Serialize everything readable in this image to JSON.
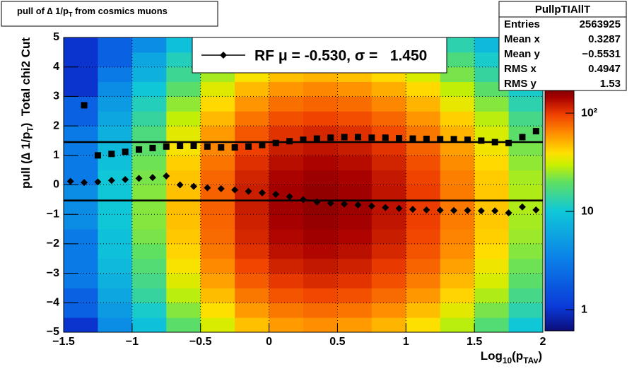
{
  "chart_data": {
    "type": "heatmap",
    "title_parts": [
      "pull of ∆ 1/p",
      "T",
      " from cosmics muons"
    ],
    "xlabel_parts": [
      "Log",
      "10",
      "(p",
      "TAv",
      ")"
    ],
    "ylabel_parts": [
      "pull (∆ 1/p",
      "T",
      ")  Total chi2 Cut"
    ],
    "xlim": [
      -1.5,
      2
    ],
    "ylim": [
      -5,
      5
    ],
    "xticks": [
      {
        "value": -1.5,
        "label": "−1.5"
      },
      {
        "value": -1,
        "label": "−1"
      },
      {
        "value": -0.5,
        "label": "−0.5"
      },
      0,
      0.5,
      1,
      1.5,
      2
    ],
    "yticks": [
      {
        "value": -5,
        "label": "−5"
      },
      {
        "value": -4,
        "label": "−4"
      },
      {
        "value": -3,
        "label": "−3"
      },
      {
        "value": -2,
        "label": "−2"
      },
      {
        "value": -1,
        "label": "−1"
      },
      0,
      1,
      2,
      3,
      4,
      5
    ],
    "grid": true,
    "zlim": [
      0.61,
      170
    ],
    "zlog": true,
    "zticks": [
      1,
      10,
      {
        "value": 100,
        "label": "10²"
      }
    ],
    "xbins": [
      -1.5,
      -1.25,
      -1,
      -0.75,
      -0.5,
      -0.25,
      0,
      0.25,
      0.5,
      0.75,
      1,
      1.25,
      1.5,
      1.75,
      2
    ],
    "ybins": [
      -5,
      -4.5,
      -4,
      -3.5,
      -3,
      -2.5,
      -2,
      -1.5,
      -1,
      -0.5,
      0,
      0.5,
      1,
      1.5,
      2,
      2.5,
      3,
      3.5,
      4,
      4.5,
      5
    ],
    "z": [
      [
        1,
        4,
        9,
        19,
        32,
        47,
        58,
        62,
        58,
        50,
        39,
        28,
        18,
        10
      ],
      [
        2,
        5,
        11,
        23,
        39,
        58,
        71,
        76,
        72,
        62,
        48,
        34,
        22,
        13
      ],
      [
        2,
        6,
        14,
        28,
        48,
        71,
        87,
        93,
        88,
        76,
        59,
        42,
        27,
        16
      ],
      [
        3,
        7,
        16,
        33,
        56,
        83,
        102,
        110,
        104,
        89,
        69,
        49,
        32,
        19
      ],
      [
        3,
        8,
        18,
        38,
        64,
        94,
        116,
        124,
        117,
        101,
        79,
        56,
        36,
        21
      ],
      [
        3,
        9,
        20,
        42,
        71,
        105,
        129,
        138,
        130,
        112,
        87,
        62,
        40,
        23
      ],
      [
        3,
        9,
        22,
        45,
        76,
        112,
        138,
        148,
        140,
        120,
        93,
        66,
        43,
        25
      ],
      [
        4,
        10,
        23,
        47,
        79,
        117,
        145,
        155,
        146,
        126,
        98,
        69,
        45,
        26
      ],
      [
        4,
        10,
        23,
        48,
        81,
        120,
        148,
        158,
        150,
        129,
        100,
        71,
        46,
        27
      ],
      [
        4,
        10,
        23,
        47,
        80,
        119,
        146,
        157,
        148,
        127,
        99,
        70,
        45,
        27
      ],
      [
        3,
        10,
        22,
        46,
        78,
        115,
        141,
        151,
        143,
        123,
        95,
        68,
        44,
        26
      ],
      [
        3,
        9,
        21,
        43,
        72,
        107,
        132,
        141,
        133,
        115,
        89,
        63,
        41,
        24
      ],
      [
        3,
        8,
        19,
        38,
        65,
        97,
        119,
        127,
        120,
        104,
        80,
        57,
        37,
        22
      ],
      [
        3,
        7,
        17,
        34,
        58,
        85,
        105,
        112,
        106,
        91,
        71,
        50,
        32,
        19
      ],
      [
        2,
        6,
        14,
        29,
        49,
        72,
        89,
        95,
        90,
        78,
        60,
        43,
        28,
        16
      ],
      [
        2,
        5,
        12,
        24,
        41,
        60,
        74,
        79,
        75,
        65,
        50,
        35,
        23,
        13
      ],
      [
        1,
        4,
        10,
        19,
        33,
        49,
        60,
        65,
        61,
        52,
        41,
        29,
        19,
        11
      ],
      [
        1,
        3,
        7,
        15,
        26,
        38,
        47,
        50,
        47,
        41,
        32,
        22,
        14,
        9
      ],
      [
        1,
        2,
        6,
        12,
        20,
        30,
        36,
        39,
        37,
        32,
        25,
        17,
        11,
        7
      ],
      [
        1,
        2,
        4,
        9,
        15,
        22,
        27,
        29,
        27,
        23,
        18,
        13,
        8,
        5
      ]
    ],
    "series": [
      {
        "marker": "square",
        "color": "#000000",
        "x": [
          -1.35,
          -1.25,
          -1.15,
          -1.05,
          -0.95,
          -0.85,
          -0.75,
          -0.65,
          -0.55,
          -0.45,
          -0.35,
          -0.25,
          -0.15,
          -0.05,
          0.05,
          0.15,
          0.25,
          0.35,
          0.45,
          0.55,
          0.65,
          0.75,
          0.85,
          0.95,
          1.05,
          1.15,
          1.25,
          1.35,
          1.45,
          1.55,
          1.65,
          1.75,
          1.85,
          1.95
        ],
        "values": [
          2.7,
          1.0,
          1.05,
          1.12,
          1.2,
          1.25,
          1.3,
          1.32,
          1.32,
          1.3,
          1.27,
          1.27,
          1.3,
          1.35,
          1.42,
          1.48,
          1.53,
          1.57,
          1.6,
          1.62,
          1.62,
          1.6,
          1.6,
          1.58,
          1.57,
          1.56,
          1.55,
          1.55,
          1.53,
          1.5,
          1.45,
          1.42,
          1.62,
          1.82
        ]
      },
      {
        "name": "RF μ = -0.530, σ =   1.450",
        "marker": "diamond",
        "color": "#000000",
        "x": [
          -1.45,
          -1.35,
          -1.25,
          -1.15,
          -1.05,
          -0.95,
          -0.85,
          -0.75,
          -0.65,
          -0.55,
          -0.45,
          -0.35,
          -0.25,
          -0.15,
          -0.05,
          0.05,
          0.15,
          0.25,
          0.35,
          0.45,
          0.55,
          0.65,
          0.75,
          0.85,
          0.95,
          1.05,
          1.15,
          1.25,
          1.35,
          1.45,
          1.55,
          1.65,
          1.75,
          1.85,
          1.95
        ],
        "values": [
          0.12,
          0.08,
          0.1,
          0.15,
          0.18,
          0.22,
          0.25,
          0.3,
          0.0,
          -0.05,
          -0.1,
          -0.13,
          -0.17,
          -0.22,
          -0.27,
          -0.32,
          -0.4,
          -0.5,
          -0.58,
          -0.62,
          -0.65,
          -0.68,
          -0.72,
          -0.77,
          -0.8,
          -0.83,
          -0.85,
          -0.86,
          -0.87,
          -0.87,
          -0.88,
          -0.88,
          -0.95,
          -0.75,
          -0.85
        ]
      }
    ],
    "lines": [
      -0.53,
      1.45
    ],
    "stats": {
      "name": "PullpTIAllT",
      "rows": [
        [
          "Entries",
          "2563925"
        ],
        [
          "Mean x",
          "0.3287"
        ],
        [
          "Mean y",
          "−0.5531"
        ],
        [
          "RMS x",
          "0.4947"
        ],
        [
          "RMS y",
          "1.53"
        ]
      ]
    }
  }
}
